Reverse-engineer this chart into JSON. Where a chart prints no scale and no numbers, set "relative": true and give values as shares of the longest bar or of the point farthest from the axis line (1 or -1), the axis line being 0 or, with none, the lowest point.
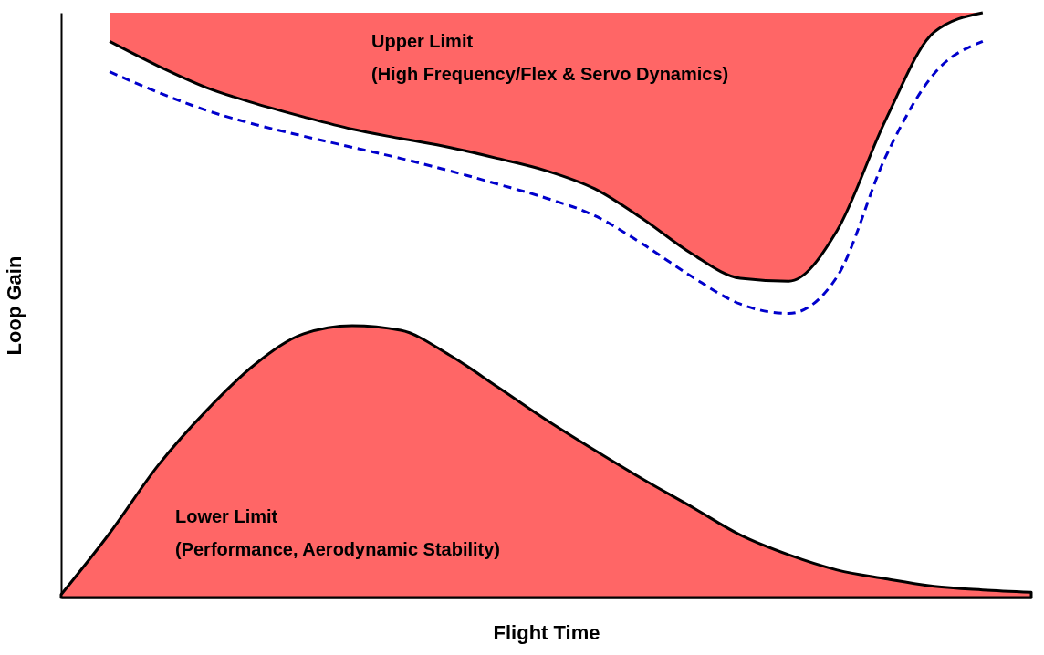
{
  "chart_data": {
    "type": "area",
    "relative": true,
    "xlabel": "Flight Time",
    "ylabel": "Loop Gain",
    "categories": [
      null,
      null,
      null,
      null,
      null,
      null,
      null,
      null,
      null,
      null,
      null,
      null,
      null,
      null,
      null,
      null,
      null,
      null,
      null,
      null,
      null
    ],
    "annotations": [
      "Upper Limit\n(High Frequency/Flex & Servo Dynamics)",
      "Lower Limit\n(Performance, Aerodynamic Stability)"
    ],
    "series": [
      {
        "type": "line",
        "color": "#000000",
        "values": [
          null,
          0.951,
          0.909,
          0.872,
          0.845,
          0.822,
          0.801,
          0.785,
          0.77,
          0.751,
          0.73,
          0.699,
          0.647,
          0.588,
          0.546,
          0.541,
          0.628,
          0.817,
          0.967,
          1.0,
          null
        ],
        "lower": [
          null,
          0.951,
          0.909,
          0.872,
          0.845,
          0.822,
          0.801,
          0.785,
          0.77,
          0.751,
          0.73,
          0.699,
          0.647,
          0.588,
          0.546,
          0.541,
          0.628,
          0.817,
          0.967,
          1.0,
          null
        ],
        "upper": [
          null,
          1,
          1,
          1,
          1,
          1,
          1,
          1,
          1,
          1,
          1,
          1,
          1,
          1,
          1,
          1,
          1,
          1,
          1,
          1,
          null
        ]
      },
      {
        "type": "area",
        "color": "#ff6666",
        "values": [
          0.005,
          0.11,
          0.226,
          0.32,
          0.399,
          0.451,
          0.465,
          0.457,
          0.415,
          0.36,
          0.304,
          0.252,
          0.202,
          0.155,
          0.107,
          0.073,
          0.047,
          0.032,
          0.019,
          0.013,
          0.009
        ]
      },
      {
        "type": "line",
        "color": "#0000cc",
        "line_style": "dashed",
        "values": [
          null,
          0.899,
          0.864,
          0.833,
          0.809,
          0.789,
          0.77,
          0.751,
          0.73,
          0.707,
          0.683,
          0.653,
          0.604,
          0.549,
          0.502,
          0.486,
          0.549,
          0.754,
          0.896,
          0.951,
          null
        ]
      }
    ]
  }
}
